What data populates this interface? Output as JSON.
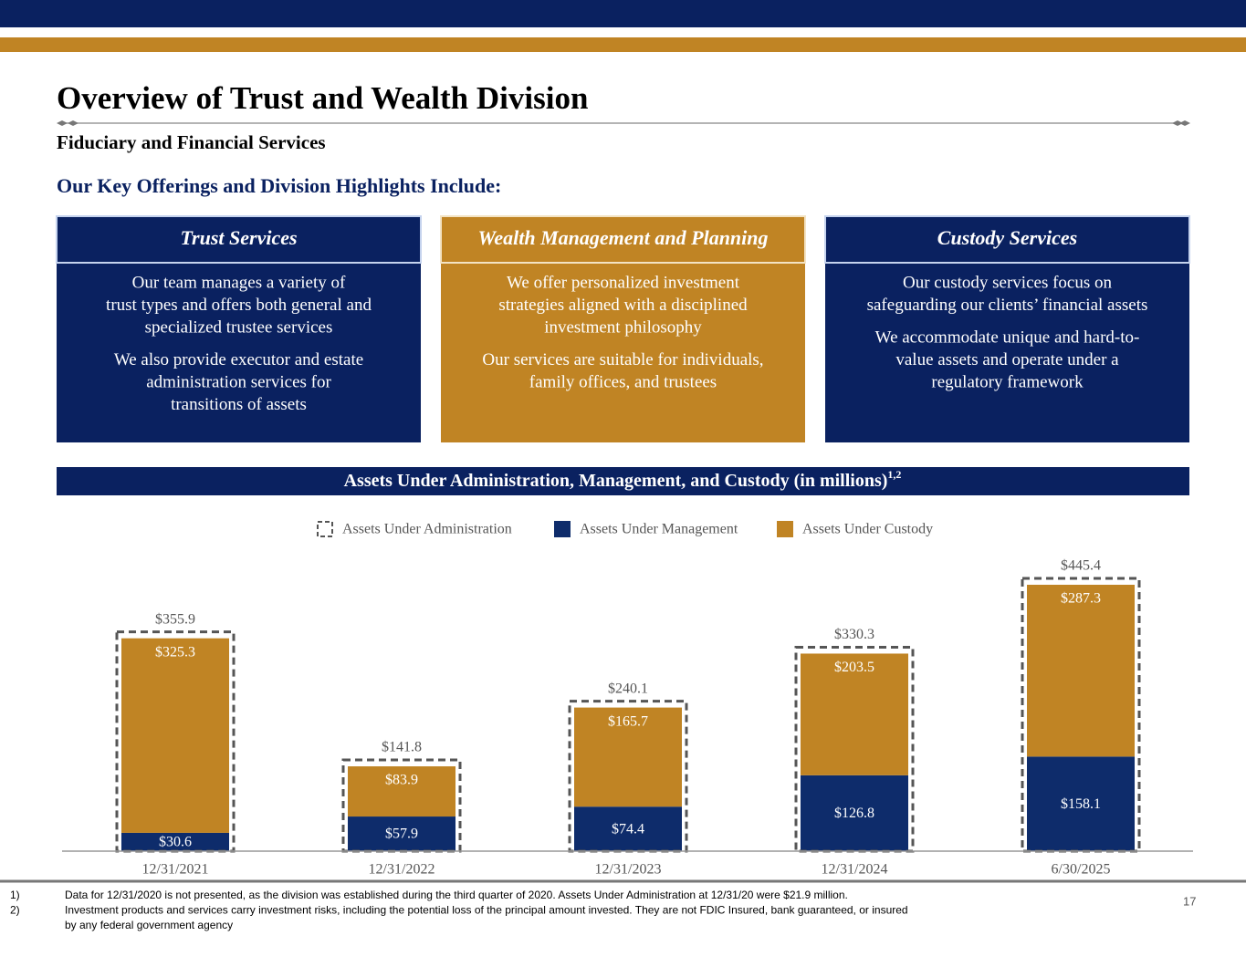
{
  "header": {
    "title": "Overview of Trust and Wealth Division",
    "subtitle": "Fiduciary and Financial Services",
    "section": "Our Key Offerings and Division Highlights Include:"
  },
  "cards": [
    {
      "title": "Trust Services",
      "paragraphs": [
        [
          "Our team manages a variety of",
          "trust types and offers both general and",
          "specialized trustee services"
        ],
        [
          "We also provide executor and estate",
          "administration services for",
          "transitions of assets"
        ]
      ]
    },
    {
      "title": "Wealth Management and Planning",
      "paragraphs": [
        [
          "We offer personalized investment",
          "strategies aligned with a disciplined",
          "investment philosophy"
        ],
        [
          "Our services are suitable for individuals,",
          "family offices, and trustees"
        ]
      ]
    },
    {
      "title": "Custody Services",
      "paragraphs": [
        [
          "Our custody services focus on",
          "safeguarding our clients’ financial assets"
        ],
        [
          "We accommodate unique and hard-to-",
          "value assets and operate under a",
          "regulatory framework"
        ]
      ]
    }
  ],
  "chart_data": {
    "type": "bar",
    "stacked": true,
    "title": "Assets Under Administration, Management, and Custody (in millions)",
    "title_note": "1,2",
    "categories": [
      "12/31/2021",
      "12/31/2022",
      "12/31/2023",
      "12/31/2024",
      "6/30/2025"
    ],
    "series": [
      {
        "name": "Assets Under Administration",
        "style": "dashed-outline",
        "color": "#555555",
        "values": [
          355.9,
          141.8,
          240.1,
          330.3,
          445.4
        ],
        "value_labels": [
          "$355.9",
          "$141.8",
          "$240.1",
          "$330.3",
          "$445.4"
        ]
      },
      {
        "name": "Assets Under Management",
        "color": "#0e2c6b",
        "values": [
          30.6,
          57.9,
          74.4,
          126.8,
          158.1
        ],
        "value_labels": [
          "$30.6",
          "$57.9",
          "$74.4",
          "$126.8",
          "$158.1"
        ]
      },
      {
        "name": "Assets Under Custody",
        "color": "#c08424",
        "values": [
          325.3,
          83.9,
          165.7,
          203.5,
          287.3
        ],
        "value_labels": [
          "$325.3",
          "$83.9",
          "$165.7",
          "$203.5",
          "$287.3"
        ]
      }
    ]
  },
  "footnotes": [
    {
      "marker": "1)",
      "lines": [
        "Data for 12/31/2020 is not presented, as the division was established during the third quarter of 2020. Assets Under Administration at 12/31/20 were $21.9 million."
      ]
    },
    {
      "marker": "2)",
      "lines": [
        "Investment products and services carry investment risks, including the potential loss of the principal amount invested. They are not FDIC Insured, bank guaranteed, or insured",
        "by any federal government agency"
      ]
    }
  ],
  "page_number": "17"
}
